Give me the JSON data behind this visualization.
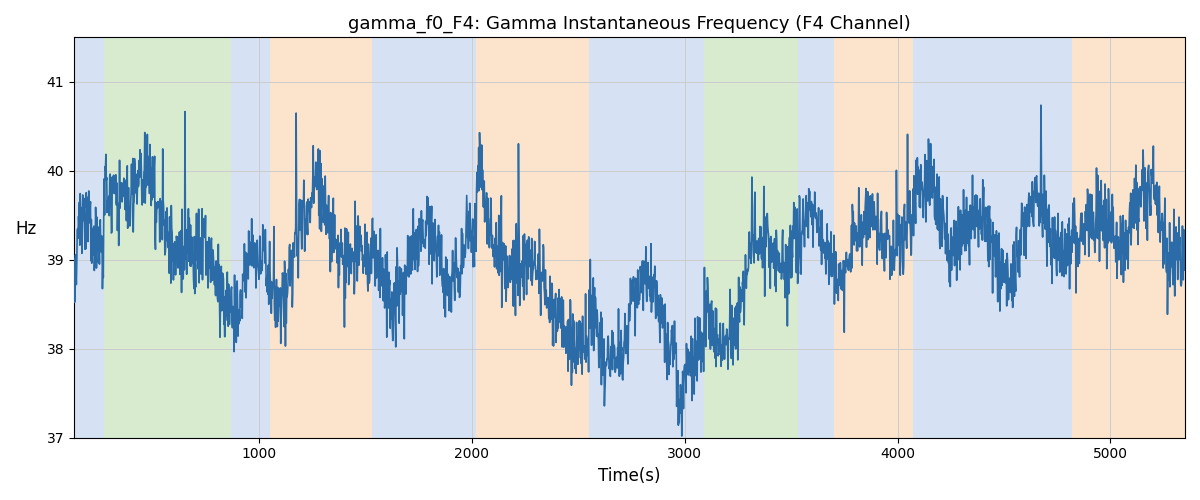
{
  "title": "gamma_f0_F4: Gamma Instantaneous Frequency (F4 Channel)",
  "xlabel": "Time(s)",
  "ylabel": "Hz",
  "xlim": [
    130,
    5350
  ],
  "ylim": [
    37,
    41.5
  ],
  "yticks": [
    37,
    38,
    39,
    40,
    41
  ],
  "line_color": "#2b6ca8",
  "line_width": 1.2,
  "bg_bands": [
    {
      "xstart": 130,
      "xend": 270,
      "color": "#aec6e8",
      "alpha": 0.5
    },
    {
      "xstart": 270,
      "xend": 870,
      "color": "#b2d9a0",
      "alpha": 0.5
    },
    {
      "xstart": 870,
      "xend": 1050,
      "color": "#aec6e8",
      "alpha": 0.5
    },
    {
      "xstart": 1050,
      "xend": 1530,
      "color": "#f8c99a",
      "alpha": 0.5
    },
    {
      "xstart": 1530,
      "xend": 2020,
      "color": "#aec6e8",
      "alpha": 0.5
    },
    {
      "xstart": 2020,
      "xend": 2550,
      "color": "#f8c99a",
      "alpha": 0.5
    },
    {
      "xstart": 2550,
      "xend": 2960,
      "color": "#aec6e8",
      "alpha": 0.5
    },
    {
      "xstart": 2960,
      "xend": 3090,
      "color": "#aec6e8",
      "alpha": 0.5
    },
    {
      "xstart": 3090,
      "xend": 3530,
      "color": "#b2d9a0",
      "alpha": 0.5
    },
    {
      "xstart": 3530,
      "xend": 3700,
      "color": "#aec6e8",
      "alpha": 0.5
    },
    {
      "xstart": 3700,
      "xend": 4070,
      "color": "#f8c99a",
      "alpha": 0.5
    },
    {
      "xstart": 4070,
      "xend": 4670,
      "color": "#aec6e8",
      "alpha": 0.5
    },
    {
      "xstart": 4670,
      "xend": 4820,
      "color": "#aec6e8",
      "alpha": 0.5
    },
    {
      "xstart": 4820,
      "xend": 5350,
      "color": "#f8c99a",
      "alpha": 0.5
    }
  ],
  "figsize": [
    12.0,
    5.0
  ],
  "dpi": 100,
  "seed": 12345,
  "n_points": 2600,
  "t_start": 130,
  "t_end": 5350,
  "base_freq": 39.2,
  "grid_color": "#cccccc",
  "bg_color": "#ffffff",
  "title_fontsize": 13,
  "label_fontsize": 12,
  "tick_fontsize": 10,
  "xticks": [
    1000,
    2000,
    3000,
    4000,
    5000
  ]
}
